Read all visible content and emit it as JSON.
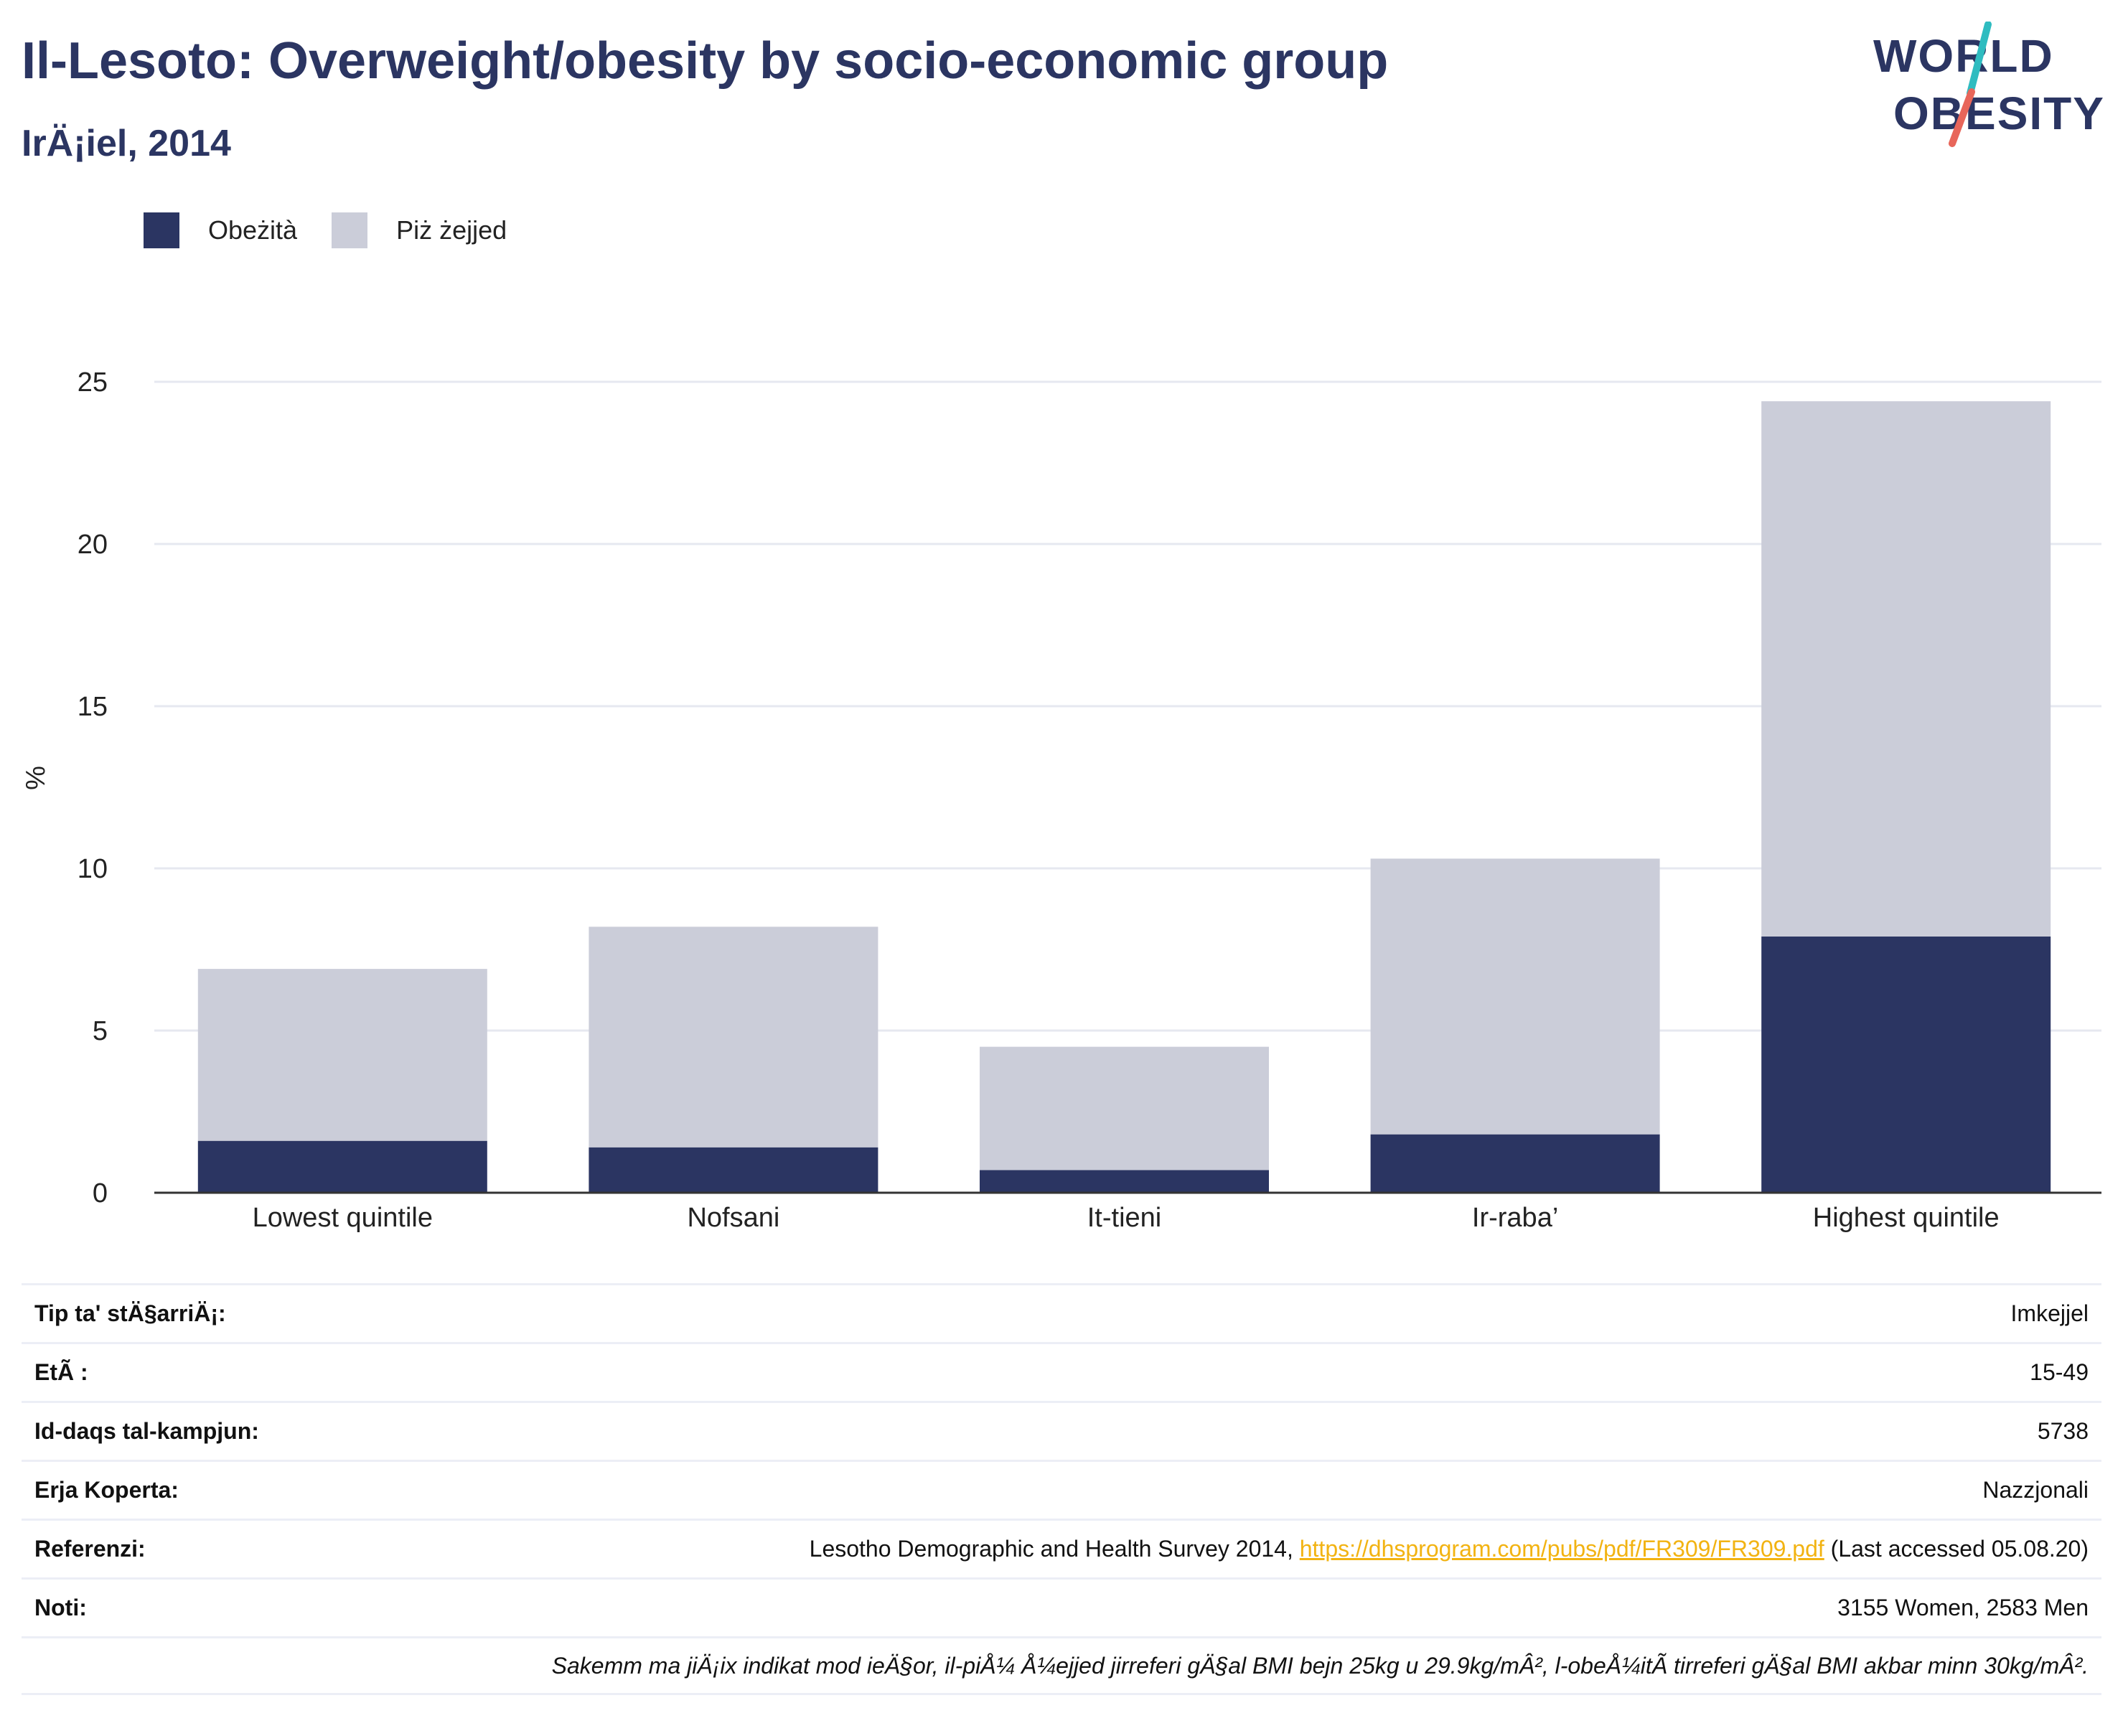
{
  "header": {
    "title": "Il-Lesoto: Overweight/obesity by socio-economic group",
    "subtitle": "IrÄ¡iel, 2014"
  },
  "logo": {
    "line1": "WORLD",
    "line2": "OBESITY",
    "colors": {
      "text": "#2b3562",
      "slash_top": "#2fbcc0",
      "slash_bottom": "#e8665a"
    }
  },
  "colors": {
    "obese": "#2b3562",
    "overweight": "#cbcdd9",
    "grid": "#e6e8f0",
    "axis": "#333333"
  },
  "chart_data": {
    "type": "bar",
    "stacked": true,
    "categories": [
      "Lowest quintile",
      "Nofsani",
      "It-tieni",
      "Ir-raba’",
      "Highest quintile"
    ],
    "series": [
      {
        "name": "Obeżità",
        "values": [
          1.6,
          1.4,
          0.7,
          1.8,
          7.9
        ]
      },
      {
        "name": "Piż żejjed",
        "values": [
          5.3,
          6.8,
          3.8,
          8.5,
          16.5
        ]
      }
    ],
    "ylabel": "%",
    "ylim": [
      0,
      25
    ],
    "yticks": [
      0,
      5,
      10,
      15,
      20,
      25
    ],
    "grid": true,
    "legend": "top-left"
  },
  "info": {
    "rows": [
      {
        "label": "Tip ta' stÄ§arriÄ¡:",
        "value": "Imkejjel"
      },
      {
        "label": "EtÃ :",
        "value": "15-49"
      },
      {
        "label": "Id-daqs tal-kampjun:",
        "value": "5738"
      },
      {
        "label": "Erja Koperta:",
        "value": "Nazzjonali"
      }
    ],
    "reference": {
      "label": "Referenzi:",
      "text_before": "Lesotho Demographic and Health Survey 2014, ",
      "link": "https://dhsprogram.com/pubs/pdf/FR309/FR309.pdf",
      "text_after": " (Last accessed 05.08.20)"
    },
    "notes": {
      "label": "Noti:",
      "value": "3155 Women, 2583 Men"
    },
    "footnote": "Sakemm ma jiÄ¡ix indikat mod ieÄ§or, il-piÅ¼ Å¼ejjed jirreferi gÄ§al BMI bejn 25kg u 29.9kg/mÂ², l-obeÅ¼itÃ  tirreferi gÄ§al BMI akbar minn 30kg/mÂ²."
  }
}
